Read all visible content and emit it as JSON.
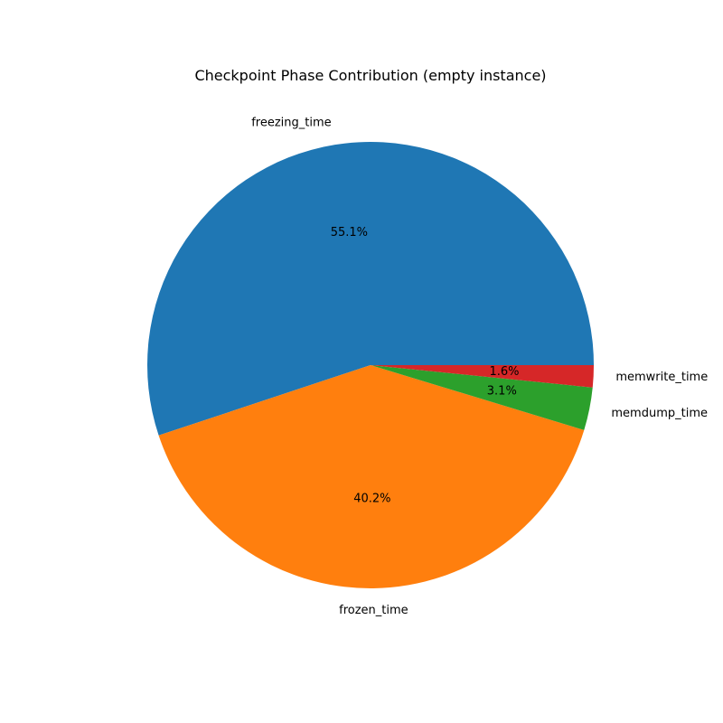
{
  "chart_data": {
    "type": "pie",
    "title": "Checkpoint Phase Contribution (empty instance)",
    "slices": [
      {
        "label": "freezing_time",
        "value": 55.1,
        "pct_label": "55.1%",
        "color": "#1f77b4"
      },
      {
        "label": "frozen_time",
        "value": 40.2,
        "pct_label": "40.2%",
        "color": "#ff7f0e"
      },
      {
        "label": "memdump_time",
        "value": 3.1,
        "pct_label": "3.1%",
        "color": "#2ca02c"
      },
      {
        "label": "memwrite_time",
        "value": 1.6,
        "pct_label": "1.6%",
        "color": "#d62728"
      }
    ],
    "start_angle_deg": 0,
    "direction": "counterclockwise"
  }
}
